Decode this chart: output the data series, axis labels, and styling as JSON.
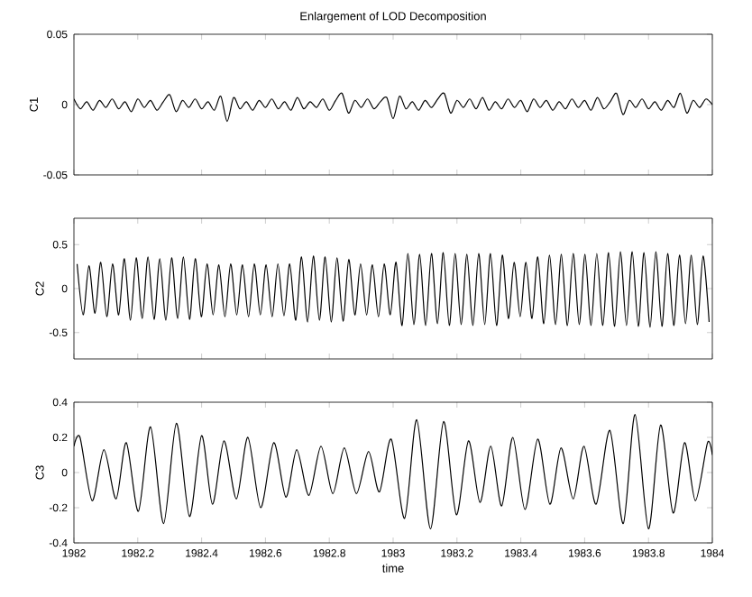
{
  "chart_data": [
    {
      "type": "line",
      "title": "Enlargement of LOD Decomposition",
      "ylabel": "C1",
      "xlim": [
        1982,
        1984
      ],
      "xticks": [
        1982,
        1982.2,
        1982.4,
        1982.6,
        1982.8,
        1983,
        1983.2,
        1983.4,
        1983.6,
        1983.8,
        1984
      ],
      "ylim": [
        -0.05,
        0.05
      ],
      "yticks": [
        -0.05,
        0,
        0.05
      ],
      "tick_labels": "y",
      "series": [
        {
          "color": "#000000",
          "x": [
            1982,
            1982.02,
            1982.04,
            1982.06,
            1982.08,
            1982.1,
            1982.12,
            1982.14,
            1982.16,
            1982.18,
            1982.2,
            1982.22,
            1982.24,
            1982.26,
            1982.28,
            1982.3,
            1982.32,
            1982.34,
            1982.36,
            1982.38,
            1982.4,
            1982.42,
            1982.44,
            1982.46,
            1982.48,
            1982.5,
            1982.52,
            1982.54,
            1982.56,
            1982.58,
            1982.6,
            1982.62,
            1982.64,
            1982.66,
            1982.68,
            1982.7,
            1982.72,
            1982.74,
            1982.76,
            1982.78,
            1982.8,
            1982.82,
            1982.84,
            1982.86,
            1982.88,
            1982.9,
            1982.92,
            1982.94,
            1982.96,
            1982.98,
            1983,
            1983.02,
            1983.04,
            1983.06,
            1983.08,
            1983.1,
            1983.12,
            1983.14,
            1983.16,
            1983.18,
            1983.2,
            1983.22,
            1983.24,
            1983.26,
            1983.28,
            1983.3,
            1983.32,
            1983.34,
            1983.36,
            1983.38,
            1983.4,
            1983.42,
            1983.44,
            1983.46,
            1983.48,
            1983.5,
            1983.52,
            1983.54,
            1983.56,
            1983.58,
            1983.6,
            1983.62,
            1983.64,
            1983.66,
            1983.68,
            1983.7,
            1983.72,
            1983.74,
            1983.76,
            1983.78,
            1983.8,
            1983.82,
            1983.84,
            1983.86,
            1983.88,
            1983.9,
            1983.92,
            1983.94,
            1983.96,
            1983.98,
            1984
          ],
          "values": [
            0.004,
            -0.003,
            0.002,
            -0.004,
            0.003,
            -0.002,
            0.004,
            -0.003,
            0.002,
            -0.005,
            0.004,
            -0.002,
            0.003,
            -0.004,
            0.002,
            0.007,
            -0.005,
            0.003,
            -0.002,
            0.004,
            -0.003,
            0.002,
            -0.004,
            0.006,
            -0.012,
            0.005,
            -0.003,
            0.002,
            -0.004,
            0.003,
            -0.002,
            0.004,
            -0.003,
            0.002,
            -0.004,
            0.005,
            -0.003,
            0.002,
            -0.002,
            0.004,
            -0.004,
            0.003,
            0.008,
            -0.006,
            0.003,
            -0.002,
            0.004,
            -0.003,
            0.002,
            0.005,
            -0.01,
            0.006,
            -0.003,
            0.002,
            -0.004,
            0.003,
            -0.002,
            0.004,
            0.008,
            -0.006,
            0.003,
            -0.002,
            0.004,
            -0.003,
            0.005,
            -0.004,
            0.002,
            -0.003,
            0.004,
            -0.002,
            0.003,
            -0.005,
            0.004,
            -0.002,
            0.003,
            -0.004,
            0.002,
            -0.003,
            0.004,
            -0.002,
            0.003,
            -0.004,
            0.005,
            -0.003,
            0.002,
            0.008,
            -0.007,
            0.003,
            -0.002,
            0.004,
            -0.003,
            0.002,
            -0.004,
            0.003,
            -0.002,
            0.008,
            -0.006,
            0.003,
            -0.002,
            0.004,
            0.0
          ]
        }
      ]
    },
    {
      "type": "line",
      "ylabel": "C2",
      "xlim": [
        1982,
        1984
      ],
      "xticks": [
        1982,
        1982.2,
        1982.4,
        1982.6,
        1982.8,
        1983,
        1983.2,
        1983.4,
        1983.6,
        1983.8,
        1984
      ],
      "ylim": [
        -0.8,
        0.8
      ],
      "yticks": [
        -0.5,
        0,
        0.5
      ],
      "tick_labels": "y",
      "series": [
        {
          "color": "#000000",
          "x": [
            1982.01,
            1982.029,
            1982.047,
            1982.066,
            1982.084,
            1982.103,
            1982.121,
            1982.14,
            1982.158,
            1982.177,
            1982.195,
            1982.214,
            1982.232,
            1982.251,
            1982.269,
            1982.288,
            1982.306,
            1982.325,
            1982.343,
            1982.362,
            1982.38,
            1982.399,
            1982.417,
            1982.436,
            1982.454,
            1982.473,
            1982.491,
            1982.51,
            1982.528,
            1982.547,
            1982.565,
            1982.584,
            1982.602,
            1982.621,
            1982.639,
            1982.658,
            1982.676,
            1982.695,
            1982.713,
            1982.732,
            1982.75,
            1982.769,
            1982.787,
            1982.806,
            1982.824,
            1982.843,
            1982.861,
            1982.88,
            1982.898,
            1982.917,
            1982.935,
            1982.954,
            1982.972,
            1982.991,
            1983.009,
            1983.028,
            1983.046,
            1983.065,
            1983.083,
            1983.102,
            1983.12,
            1983.139,
            1983.157,
            1983.176,
            1983.194,
            1983.213,
            1983.231,
            1983.25,
            1983.268,
            1983.287,
            1983.305,
            1983.324,
            1983.342,
            1983.361,
            1983.379,
            1983.398,
            1983.416,
            1983.435,
            1983.453,
            1983.472,
            1983.49,
            1983.509,
            1983.527,
            1983.546,
            1983.564,
            1983.583,
            1983.601,
            1983.62,
            1983.638,
            1983.657,
            1983.675,
            1983.694,
            1983.712,
            1983.731,
            1983.749,
            1983.768,
            1983.786,
            1983.805,
            1983.823,
            1983.842,
            1983.86,
            1983.879,
            1983.897,
            1983.916,
            1983.934,
            1983.953,
            1983.971,
            1983.99
          ],
          "values": [
            0.28,
            -0.3,
            0.26,
            -0.28,
            0.3,
            -0.32,
            0.28,
            -0.3,
            0.34,
            -0.36,
            0.35,
            -0.34,
            0.36,
            -0.35,
            0.34,
            -0.36,
            0.35,
            -0.34,
            0.36,
            -0.35,
            0.34,
            -0.32,
            0.28,
            -0.3,
            0.27,
            -0.32,
            0.28,
            -0.3,
            0.27,
            -0.32,
            0.28,
            -0.3,
            0.27,
            -0.32,
            0.28,
            -0.31,
            0.28,
            -0.36,
            0.36,
            -0.38,
            0.37,
            -0.36,
            0.36,
            -0.38,
            0.35,
            -0.37,
            0.33,
            -0.3,
            0.28,
            -0.3,
            0.27,
            -0.32,
            0.28,
            -0.3,
            0.3,
            -0.42,
            0.4,
            -0.41,
            0.39,
            -0.42,
            0.4,
            -0.4,
            0.41,
            -0.42,
            0.4,
            -0.41,
            0.39,
            -0.42,
            0.4,
            -0.41,
            0.4,
            -0.42,
            0.38,
            -0.34,
            0.3,
            -0.32,
            0.3,
            -0.34,
            0.36,
            -0.4,
            0.38,
            -0.41,
            0.39,
            -0.42,
            0.4,
            -0.41,
            0.39,
            -0.42,
            0.4,
            -0.42,
            0.41,
            -0.43,
            0.42,
            -0.42,
            0.42,
            -0.43,
            0.41,
            -0.44,
            0.42,
            -0.43,
            0.4,
            -0.42,
            0.38,
            -0.4,
            0.38,
            -0.41,
            0.37,
            -0.38
          ]
        }
      ]
    },
    {
      "type": "line",
      "ylabel": "C3",
      "xlabel": "time",
      "xlim": [
        1982,
        1984
      ],
      "xticks": [
        1982,
        1982.2,
        1982.4,
        1982.6,
        1982.8,
        1983,
        1983.2,
        1983.4,
        1983.6,
        1983.8,
        1984
      ],
      "ylim": [
        -0.4,
        0.4
      ],
      "yticks": [
        -0.4,
        -0.2,
        0,
        0.2,
        0.4
      ],
      "series": [
        {
          "color": "#000000",
          "x": [
            1982,
            1982.019,
            1982.057,
            1982.094,
            1982.132,
            1982.164,
            1982.202,
            1982.24,
            1982.281,
            1982.321,
            1982.362,
            1982.4,
            1982.434,
            1982.47,
            1982.509,
            1982.545,
            1982.585,
            1982.626,
            1982.664,
            1982.698,
            1982.736,
            1982.774,
            1982.811,
            1982.847,
            1982.885,
            1982.923,
            1982.957,
            1982.994,
            1983.036,
            1983.074,
            1983.117,
            1983.158,
            1983.198,
            1983.236,
            1983.272,
            1983.306,
            1983.34,
            1983.375,
            1983.413,
            1983.453,
            1983.491,
            1983.526,
            1983.564,
            1983.598,
            1983.636,
            1983.679,
            1983.721,
            1983.758,
            1983.8,
            1983.838,
            1983.877,
            1983.913,
            1983.947,
            1983.985,
            1984
          ],
          "values": [
            0.15,
            0.2,
            -0.16,
            0.13,
            -0.15,
            0.17,
            -0.22,
            0.26,
            -0.29,
            0.28,
            -0.25,
            0.21,
            -0.18,
            0.18,
            -0.15,
            0.2,
            -0.2,
            0.17,
            -0.14,
            0.13,
            -0.13,
            0.15,
            -0.12,
            0.14,
            -0.12,
            0.12,
            -0.11,
            0.19,
            -0.26,
            0.3,
            -0.32,
            0.29,
            -0.24,
            0.18,
            -0.17,
            0.15,
            -0.19,
            0.2,
            -0.21,
            0.19,
            -0.18,
            0.14,
            -0.15,
            0.15,
            -0.18,
            0.24,
            -0.29,
            0.33,
            -0.32,
            0.27,
            -0.23,
            0.17,
            -0.16,
            0.17,
            0.1
          ]
        }
      ]
    }
  ]
}
